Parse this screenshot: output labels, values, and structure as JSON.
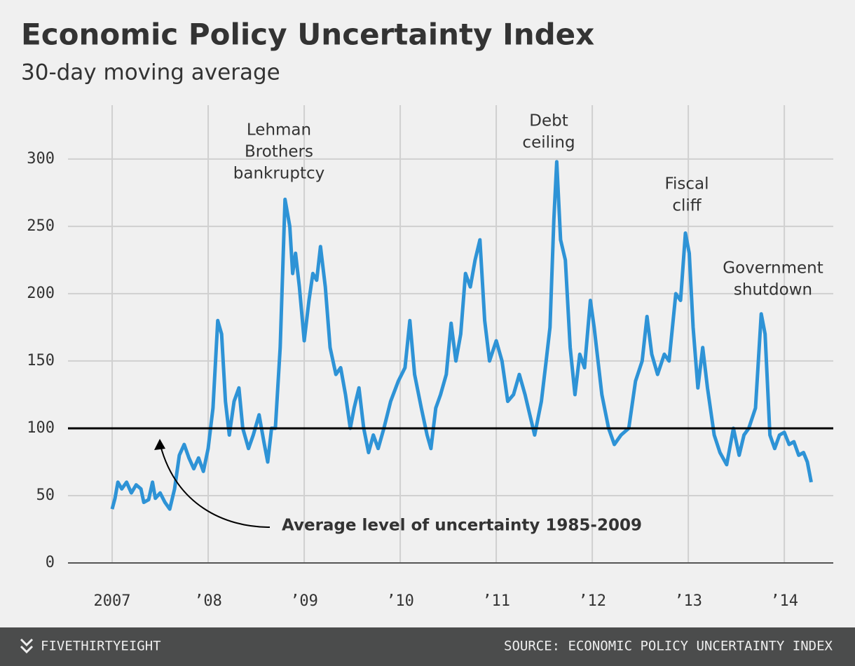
{
  "chart_data": {
    "type": "line",
    "title": "Economic Policy Uncertainty Index",
    "subtitle": "30-day moving average",
    "annotations": [
      [
        "Lehman",
        "Brothers",
        "bankruptcy"
      ],
      [
        "Debt",
        "ceiling"
      ],
      [
        "Fiscal",
        "cliff"
      ],
      [
        "Government",
        "shutdown"
      ]
    ],
    "reference_line": {
      "value": 100,
      "label": "Average level of uncertainty 1985-2009"
    },
    "xlim": [
      2006.54,
      2014.51
    ],
    "xticks": [
      {
        "value": 2007,
        "label": "2007"
      },
      {
        "value": 2008,
        "label": "’08"
      },
      {
        "value": 2009,
        "label": "’09"
      },
      {
        "value": 2010,
        "label": "’10"
      },
      {
        "value": 2011,
        "label": "’11"
      },
      {
        "value": 2012,
        "label": "’12"
      },
      {
        "value": 2013,
        "label": "’13"
      },
      {
        "value": 2014,
        "label": "’14"
      }
    ],
    "ylim": [
      0,
      340
    ],
    "yticks": [
      0,
      50,
      100,
      150,
      200,
      250,
      300
    ],
    "grid": true,
    "color": "#2e93d6",
    "x": [
      2007.0,
      2007.03,
      2007.06,
      2007.1,
      2007.15,
      2007.2,
      2007.25,
      2007.3,
      2007.33,
      2007.38,
      2007.42,
      2007.45,
      2007.5,
      2007.55,
      2007.6,
      2007.65,
      2007.7,
      2007.75,
      2007.8,
      2007.85,
      2007.9,
      2007.95,
      2008.0,
      2008.05,
      2008.1,
      2008.14,
      2008.18,
      2008.22,
      2008.27,
      2008.32,
      2008.36,
      2008.42,
      2008.47,
      2008.53,
      2008.58,
      2008.62,
      2008.66,
      2008.7,
      2008.75,
      2008.8,
      2008.85,
      2008.88,
      2008.91,
      2008.95,
      2009.0,
      2009.05,
      2009.09,
      2009.13,
      2009.17,
      2009.22,
      2009.27,
      2009.33,
      2009.38,
      2009.43,
      2009.48,
      2009.52,
      2009.57,
      2009.62,
      2009.67,
      2009.72,
      2009.77,
      2009.83,
      2009.9,
      2009.98,
      2010.05,
      2010.1,
      2010.15,
      2010.22,
      2010.28,
      2010.32,
      2010.37,
      2010.42,
      2010.48,
      2010.53,
      2010.58,
      2010.63,
      2010.68,
      2010.73,
      2010.78,
      2010.83,
      2010.88,
      2010.93,
      2011.0,
      2011.06,
      2011.12,
      2011.18,
      2011.24,
      2011.3,
      2011.35,
      2011.4,
      2011.47,
      2011.52,
      2011.56,
      2011.6,
      2011.63,
      2011.67,
      2011.72,
      2011.77,
      2011.82,
      2011.87,
      2011.92,
      2011.98,
      2012.02,
      2012.1,
      2012.17,
      2012.23,
      2012.3,
      2012.38,
      2012.45,
      2012.52,
      2012.57,
      2012.62,
      2012.68,
      2012.75,
      2012.8,
      2012.87,
      2012.92,
      2012.97,
      2013.01,
      2013.05,
      2013.1,
      2013.15,
      2013.2,
      2013.27,
      2013.33,
      2013.4,
      2013.47,
      2013.53,
      2013.58,
      2013.63,
      2013.7,
      2013.76,
      2013.8,
      2013.85,
      2013.9,
      2013.95,
      2014.0,
      2014.05,
      2014.1,
      2014.15,
      2014.2,
      2014.24,
      2014.28
    ],
    "values": [
      40,
      48,
      60,
      55,
      60,
      52,
      58,
      55,
      45,
      47,
      60,
      48,
      52,
      45,
      40,
      55,
      80,
      88,
      78,
      70,
      78,
      68,
      85,
      115,
      180,
      170,
      120,
      95,
      120,
      130,
      100,
      85,
      95,
      110,
      90,
      75,
      100,
      100,
      160,
      270,
      250,
      215,
      230,
      205,
      165,
      195,
      215,
      210,
      235,
      205,
      160,
      140,
      145,
      125,
      100,
      115,
      130,
      100,
      82,
      95,
      85,
      100,
      120,
      135,
      145,
      180,
      140,
      115,
      95,
      85,
      115,
      125,
      140,
      178,
      150,
      170,
      215,
      205,
      225,
      240,
      180,
      150,
      165,
      150,
      120,
      125,
      140,
      125,
      110,
      95,
      120,
      150,
      175,
      255,
      298,
      240,
      225,
      160,
      125,
      155,
      145,
      195,
      175,
      125,
      100,
      88,
      95,
      100,
      135,
      150,
      183,
      155,
      140,
      155,
      150,
      200,
      195,
      245,
      230,
      175,
      130,
      160,
      130,
      95,
      82,
      73,
      100,
      80,
      95,
      100,
      115,
      185,
      170,
      95,
      85,
      95,
      97,
      88,
      90,
      80,
      82,
      75,
      60
    ]
  },
  "footer": {
    "brand": "FIVETHIRTYEIGHT",
    "source": "SOURCE: ECONOMIC POLICY UNCERTAINTY INDEX"
  }
}
